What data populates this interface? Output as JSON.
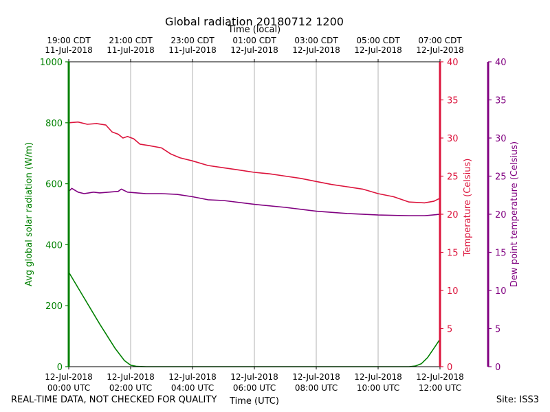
{
  "chart_data": {
    "type": "line",
    "title": "Global radiation 20180712 1200",
    "top_axis_label": "Time (local)",
    "xlabel": "Time (UTC)",
    "x_range_hours": [
      0,
      12
    ],
    "bottom_ticks": [
      {
        "hour": 0,
        "line1": "12-Jul-2018",
        "line2": "00:00 UTC"
      },
      {
        "hour": 2,
        "line1": "12-Jul-2018",
        "line2": "02:00 UTC"
      },
      {
        "hour": 4,
        "line1": "12-Jul-2018",
        "line2": "04:00 UTC"
      },
      {
        "hour": 6,
        "line1": "12-Jul-2018",
        "line2": "06:00 UTC"
      },
      {
        "hour": 8,
        "line1": "12-Jul-2018",
        "line2": "08:00 UTC"
      },
      {
        "hour": 10,
        "line1": "12-Jul-2018",
        "line2": "10:00 UTC"
      },
      {
        "hour": 12,
        "line1": "12-Jul-2018",
        "line2": "12:00 UTC"
      }
    ],
    "top_ticks": [
      {
        "hour": 0,
        "line1": "19:00 CDT",
        "line2": "11-Jul-2018"
      },
      {
        "hour": 2,
        "line1": "21:00 CDT",
        "line2": "11-Jul-2018"
      },
      {
        "hour": 4,
        "line1": "23:00 CDT",
        "line2": "11-Jul-2018"
      },
      {
        "hour": 6,
        "line1": "01:00 CDT",
        "line2": "12-Jul-2018"
      },
      {
        "hour": 8,
        "line1": "03:00 CDT",
        "line2": "12-Jul-2018"
      },
      {
        "hour": 10,
        "line1": "05:00 CDT",
        "line2": "12-Jul-2018"
      },
      {
        "hour": 12,
        "line1": "07:00 CDT",
        "line2": "12-Jul-2018"
      }
    ],
    "axes": {
      "radiation": {
        "label": "Avg global solar radiation (W/m)",
        "range": [
          0,
          1000
        ],
        "ticks": [
          0,
          200,
          400,
          600,
          800,
          1000
        ],
        "color": "#008000"
      },
      "temperature": {
        "label": "Temperature (Celsius)",
        "range": [
          0,
          40
        ],
        "ticks": [
          0,
          5,
          10,
          15,
          20,
          25,
          30,
          35,
          40
        ],
        "color": "#dc143c"
      },
      "dewpoint": {
        "label": "Dew point temperature (Celsius)",
        "range": [
          0,
          40
        ],
        "ticks": [
          0,
          5,
          10,
          15,
          20,
          25,
          30,
          35,
          40
        ],
        "color": "#800080"
      }
    },
    "series": [
      {
        "name": "Avg global solar radiation",
        "axis": "radiation",
        "color": "#008000",
        "x": [
          0,
          0.5,
          1.0,
          1.5,
          1.8,
          2.0,
          2.2,
          2.5,
          4,
          6,
          8,
          10,
          11.0,
          11.2,
          11.4,
          11.6,
          11.8,
          12.0
        ],
        "y": [
          310,
          225,
          140,
          60,
          20,
          5,
          1,
          0,
          0,
          0,
          0,
          0,
          0,
          2,
          10,
          30,
          60,
          90
        ]
      },
      {
        "name": "Temperature",
        "axis": "temperature",
        "color": "#dc143c",
        "x": [
          0,
          0.3,
          0.6,
          0.9,
          1.2,
          1.4,
          1.6,
          1.75,
          1.9,
          2.1,
          2.3,
          2.6,
          3.0,
          3.3,
          3.6,
          4.0,
          4.5,
          5.0,
          5.5,
          6.0,
          6.5,
          7.0,
          7.5,
          8.0,
          8.5,
          9.0,
          9.5,
          10.0,
          10.5,
          11.0,
          11.5,
          11.8,
          12.0
        ],
        "y": [
          32.0,
          32.1,
          31.8,
          31.9,
          31.7,
          30.8,
          30.5,
          30.0,
          30.2,
          29.9,
          29.2,
          29.0,
          28.7,
          27.9,
          27.4,
          27.0,
          26.4,
          26.1,
          25.8,
          25.5,
          25.3,
          25.0,
          24.7,
          24.3,
          23.9,
          23.6,
          23.3,
          22.7,
          22.3,
          21.6,
          21.5,
          21.7,
          22.1
        ]
      },
      {
        "name": "Dew point temperature",
        "axis": "dewpoint",
        "color": "#800080",
        "x": [
          0,
          0.1,
          0.3,
          0.5,
          0.8,
          1.0,
          1.3,
          1.6,
          1.7,
          1.9,
          2.2,
          2.5,
          3.0,
          3.5,
          4.0,
          4.5,
          5.0,
          6.0,
          7.0,
          8.0,
          9.0,
          10.0,
          11.0,
          11.5,
          12.0
        ],
        "y": [
          23.0,
          23.4,
          22.9,
          22.7,
          22.9,
          22.8,
          22.9,
          23.0,
          23.3,
          22.9,
          22.8,
          22.7,
          22.7,
          22.6,
          22.3,
          21.9,
          21.8,
          21.3,
          20.9,
          20.4,
          20.1,
          19.9,
          19.8,
          19.8,
          20.0
        ]
      }
    ]
  },
  "footer": {
    "disclaimer": "REAL-TIME DATA, NOT CHECKED FOR QUALITY",
    "site": "Site: ISS3"
  }
}
